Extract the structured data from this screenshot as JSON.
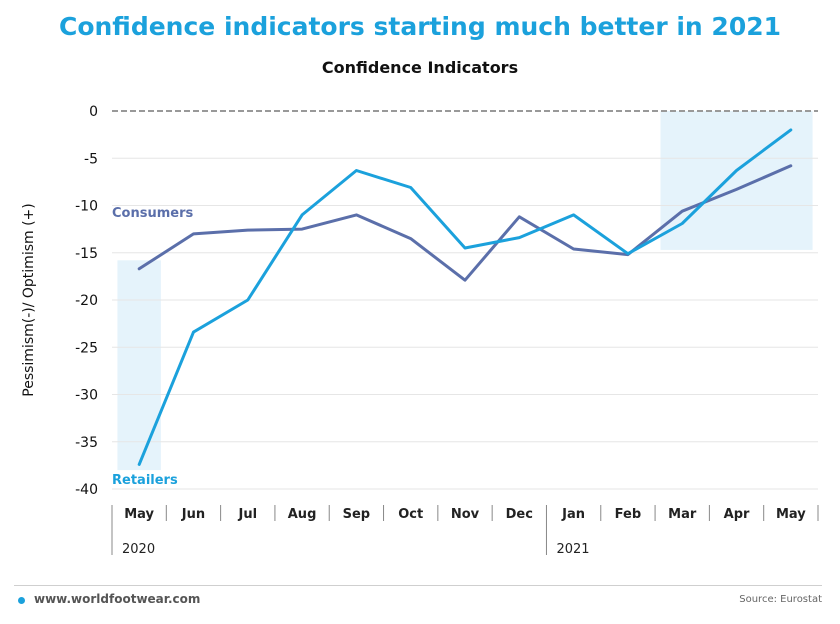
{
  "headline": "Confidence indicators starting much better in 2021",
  "footer": {
    "website": "www.worldfootwear.com",
    "source": "Source: Eurostat"
  },
  "colors": {
    "retailers": "#1ba1dc",
    "consumers": "#5b6faa",
    "highlight": "#e5f3fb",
    "grid": "#e6e6e6",
    "zero_line": "#999999",
    "headline": "#1ba1dc"
  },
  "chart_data": {
    "type": "line",
    "title": "Confidence Indicators",
    "xlabel": "",
    "ylabel": "Pessimism(-)/ Optimism (+)",
    "ylim": [
      -40,
      0
    ],
    "yticks": [
      0,
      -5,
      -10,
      -15,
      -20,
      -25,
      -30,
      -35,
      -40
    ],
    "categories": [
      "May",
      "Jun",
      "Jul",
      "Aug",
      "Sep",
      "Oct",
      "Nov",
      "Dec",
      "Jan",
      "Feb",
      "Mar",
      "Apr",
      "May"
    ],
    "year_groups": [
      {
        "label": "2020",
        "start_index": 0
      },
      {
        "label": "2021",
        "start_index": 8
      }
    ],
    "grid": true,
    "zero_line": "dashed",
    "series": [
      {
        "name": "Consumers",
        "color": "#5b6faa",
        "values": [
          -16.7,
          -13.0,
          -12.6,
          -12.5,
          -11.0,
          -13.5,
          -17.9,
          -11.2,
          -14.6,
          -15.2,
          -10.6,
          -8.3,
          -5.8
        ]
      },
      {
        "name": "Retailers",
        "color": "#1ba1dc",
        "values": [
          -37.4,
          -23.4,
          -20.0,
          -11.0,
          -6.3,
          -8.1,
          -14.5,
          -13.4,
          -11.0,
          -15.1,
          -11.9,
          -6.3,
          -2.0
        ]
      }
    ],
    "highlight_regions": [
      {
        "from_index": 0,
        "to_index": 0,
        "ymin": -38,
        "ymax": -15.8
      },
      {
        "from_index": 10,
        "to_index": 12,
        "ymin": -14.7,
        "ymax": 0
      }
    ]
  }
}
